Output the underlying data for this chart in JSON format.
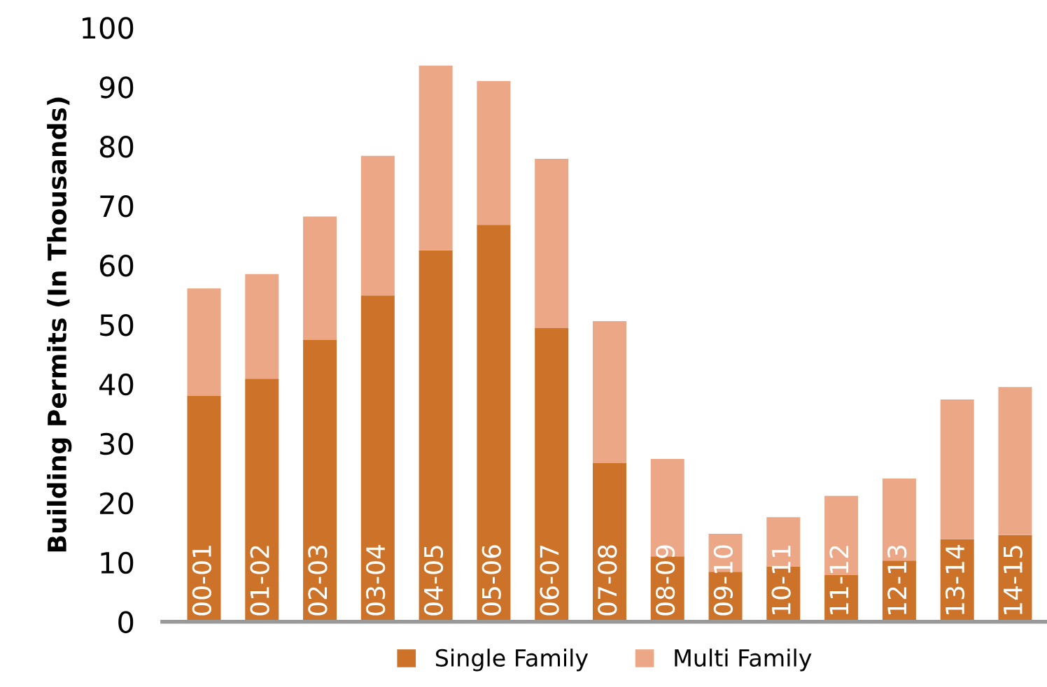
{
  "chart_data": {
    "type": "bar",
    "stacked": true,
    "ylabel": "Building Permits (In Thousands)",
    "categories": [
      "00-01",
      "01-02",
      "02-03",
      "03-04",
      "04-05",
      "05-06",
      "06-07",
      "07-08",
      "08-09",
      "09-10",
      "10-11",
      "11-12",
      "12-13",
      "13-14",
      "14-15"
    ],
    "series": [
      {
        "name": "Single Family",
        "color": "#cc7229",
        "values": [
          38.0,
          40.9,
          47.4,
          54.9,
          62.5,
          66.8,
          49.4,
          26.7,
          11.0,
          8.4,
          9.3,
          7.9,
          10.3,
          13.9,
          14.6
        ]
      },
      {
        "name": "Multi Family",
        "color": "#eca886",
        "values": [
          18.1,
          17.6,
          20.8,
          23.5,
          31.1,
          24.2,
          28.5,
          23.9,
          16.4,
          6.4,
          8.3,
          13.3,
          13.8,
          23.5,
          24.9
        ]
      }
    ],
    "ylim": [
      0,
      100
    ],
    "yticks": [
      0,
      10,
      20,
      30,
      40,
      50,
      60,
      70,
      80,
      90,
      100
    ],
    "grid": false,
    "legend": "bottom"
  }
}
